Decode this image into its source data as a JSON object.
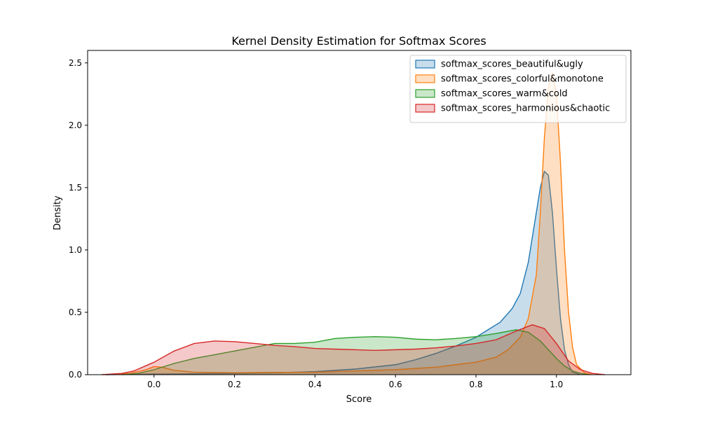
{
  "chart_data": {
    "type": "area",
    "title": "Kernel Density Estimation for Softmax Scores",
    "xlabel": "Score",
    "ylabel": "Density",
    "xlim": [
      -0.165,
      1.185
    ],
    "ylim": [
      0,
      2.6
    ],
    "xticks": [
      0.0,
      0.2,
      0.4,
      0.6,
      0.8,
      1.0
    ],
    "xtick_labels": [
      "0.0",
      "0.2",
      "0.4",
      "0.6",
      "0.8",
      "1.0"
    ],
    "yticks": [
      0.0,
      0.5,
      1.0,
      1.5,
      2.0,
      2.5
    ],
    "ytick_labels": [
      "0.0",
      "0.5",
      "1.0",
      "1.5",
      "2.0",
      "2.5"
    ],
    "grid": false,
    "legend": "top-right",
    "series": [
      {
        "name": "softmax_scores_beautiful&ugly",
        "color": "#1f77b4",
        "x": [
          -0.12,
          -0.05,
          0.0,
          0.1,
          0.2,
          0.3,
          0.4,
          0.5,
          0.6,
          0.65,
          0.7,
          0.75,
          0.8,
          0.83,
          0.86,
          0.89,
          0.91,
          0.93,
          0.945,
          0.96,
          0.97,
          0.98,
          0.99,
          1.0,
          1.01,
          1.02,
          1.03,
          1.04,
          1.06
        ],
        "y": [
          0.0,
          0.003,
          0.005,
          0.007,
          0.01,
          0.015,
          0.025,
          0.045,
          0.08,
          0.12,
          0.17,
          0.23,
          0.3,
          0.36,
          0.42,
          0.53,
          0.65,
          0.9,
          1.2,
          1.5,
          1.63,
          1.6,
          1.3,
          0.85,
          0.45,
          0.2,
          0.08,
          0.02,
          0.0
        ]
      },
      {
        "name": "softmax_scores_colorful&monotone",
        "color": "#ff7f0e",
        "x": [
          -0.12,
          -0.06,
          -0.02,
          0.0,
          0.02,
          0.05,
          0.1,
          0.2,
          0.3,
          0.4,
          0.5,
          0.6,
          0.7,
          0.75,
          0.8,
          0.85,
          0.88,
          0.91,
          0.93,
          0.95,
          0.96,
          0.97,
          0.98,
          0.99,
          1.0,
          1.01,
          1.02,
          1.03,
          1.04,
          1.05,
          1.07,
          1.09
        ],
        "y": [
          0.0,
          0.01,
          0.04,
          0.065,
          0.06,
          0.035,
          0.02,
          0.015,
          0.018,
          0.02,
          0.03,
          0.04,
          0.06,
          0.08,
          0.1,
          0.14,
          0.2,
          0.3,
          0.45,
          0.8,
          1.3,
          1.9,
          2.3,
          2.42,
          2.25,
          1.7,
          1.0,
          0.5,
          0.22,
          0.08,
          0.015,
          0.0
        ]
      },
      {
        "name": "softmax_scores_warm&cold",
        "color": "#2ca02c",
        "x": [
          -0.08,
          -0.04,
          0.0,
          0.05,
          0.1,
          0.15,
          0.2,
          0.25,
          0.3,
          0.35,
          0.4,
          0.45,
          0.5,
          0.55,
          0.6,
          0.65,
          0.7,
          0.75,
          0.8,
          0.85,
          0.9,
          0.93,
          0.96,
          0.98,
          1.0,
          1.02,
          1.04,
          1.06,
          1.08
        ],
        "y": [
          0.0,
          0.01,
          0.04,
          0.09,
          0.13,
          0.16,
          0.19,
          0.22,
          0.25,
          0.25,
          0.26,
          0.29,
          0.3,
          0.305,
          0.3,
          0.285,
          0.28,
          0.29,
          0.305,
          0.33,
          0.36,
          0.34,
          0.27,
          0.2,
          0.13,
          0.07,
          0.03,
          0.01,
          0.0
        ]
      },
      {
        "name": "softmax_scores_harmonious&chaotic",
        "color": "#d62728",
        "x": [
          -0.13,
          -0.08,
          -0.05,
          0.0,
          0.05,
          0.1,
          0.15,
          0.2,
          0.25,
          0.3,
          0.35,
          0.4,
          0.45,
          0.5,
          0.55,
          0.6,
          0.65,
          0.7,
          0.75,
          0.8,
          0.85,
          0.9,
          0.94,
          0.97,
          1.0,
          1.03,
          1.06,
          1.09,
          1.12
        ],
        "y": [
          0.0,
          0.01,
          0.03,
          0.1,
          0.19,
          0.25,
          0.27,
          0.265,
          0.25,
          0.235,
          0.225,
          0.21,
          0.205,
          0.2,
          0.195,
          0.2,
          0.205,
          0.215,
          0.23,
          0.25,
          0.28,
          0.35,
          0.4,
          0.37,
          0.25,
          0.11,
          0.04,
          0.01,
          0.0
        ]
      }
    ]
  }
}
